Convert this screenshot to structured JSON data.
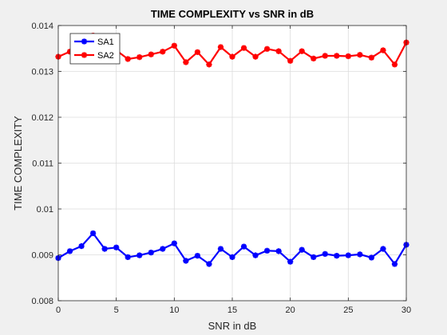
{
  "chart_data": {
    "type": "line",
    "title": "TIME COMPLEXITY vs SNR in dB",
    "xlabel": "SNR in dB",
    "ylabel": "TIME COMPLEXITY",
    "xlim": [
      0,
      30
    ],
    "ylim": [
      0.008,
      0.014
    ],
    "xticks": [
      0,
      5,
      10,
      15,
      20,
      25,
      30
    ],
    "xtick_labels": [
      "0",
      "5",
      "10",
      "15",
      "20",
      "25",
      "30"
    ],
    "yticks": [
      0.008,
      0.009,
      0.01,
      0.011,
      0.012,
      0.013,
      0.014
    ],
    "ytick_labels": [
      "0.008",
      "0.009",
      "0.01",
      "0.011",
      "0.012",
      "0.013",
      "0.014"
    ],
    "grid": true,
    "legend_position": "top-left",
    "x": [
      0,
      1,
      2,
      3,
      4,
      5,
      6,
      7,
      8,
      9,
      10,
      11,
      12,
      13,
      14,
      15,
      16,
      17,
      18,
      19,
      20,
      21,
      22,
      23,
      24,
      25,
      26,
      27,
      28,
      29,
      30
    ],
    "series": [
      {
        "name": "SA1",
        "color": "#0000ff",
        "marker": "asterisk",
        "values": [
          0.00893,
          0.00908,
          0.00919,
          0.00947,
          0.00913,
          0.00916,
          0.00895,
          0.00899,
          0.00905,
          0.00913,
          0.00925,
          0.00887,
          0.00898,
          0.0088,
          0.00913,
          0.00895,
          0.00918,
          0.00899,
          0.00909,
          0.00908,
          0.00885,
          0.00911,
          0.00895,
          0.00902,
          0.00898,
          0.00899,
          0.00901,
          0.00894,
          0.00913,
          0.0088,
          0.00922
        ]
      },
      {
        "name": "SA2",
        "color": "#ff0000",
        "marker": "asterisk",
        "values": [
          0.01332,
          0.01343,
          0.01361,
          0.01378,
          0.01354,
          0.01346,
          0.01327,
          0.01331,
          0.01337,
          0.01343,
          0.01356,
          0.0132,
          0.01342,
          0.01315,
          0.01353,
          0.01332,
          0.01351,
          0.01332,
          0.01349,
          0.01344,
          0.01323,
          0.01344,
          0.01328,
          0.01334,
          0.01334,
          0.01333,
          0.01336,
          0.0133,
          0.01346,
          0.01315,
          0.01363
        ]
      }
    ]
  }
}
